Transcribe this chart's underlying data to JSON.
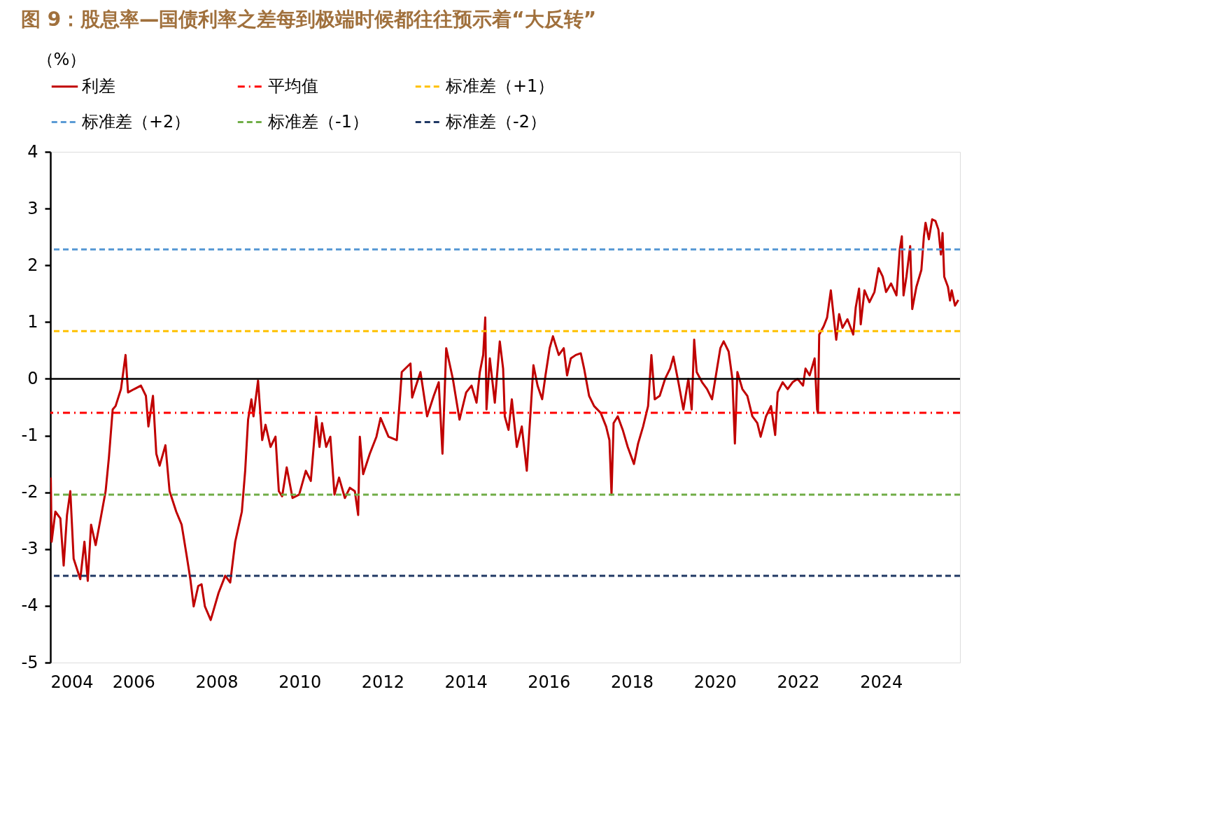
{
  "chart_data": {
    "type": "line",
    "title": "图 9：股息率—国债利率之差每到极端时候都往往预示着“大反转”",
    "ylabel": "（%）",
    "xlim": [
      2004,
      2025.9
    ],
    "xticks": [
      2004,
      2006,
      2008,
      2010,
      2012,
      2014,
      2016,
      2018,
      2020,
      2022,
      2024
    ],
    "ylim": [
      -5,
      4
    ],
    "yticks": [
      -5,
      -4,
      -3,
      -2,
      -1,
      0,
      1,
      2,
      3,
      4
    ],
    "grid": false,
    "legend": "top",
    "series": [
      {
        "name": "利差",
        "color": "#c00000",
        "line_style": "solid",
        "x": [
          2004.01,
          2004.03,
          2004.12,
          2004.24,
          2004.32,
          2004.4,
          2004.48,
          2004.56,
          2004.72,
          2004.82,
          2004.9,
          2004.98,
          2005.09,
          2005.21,
          2005.33,
          2005.41,
          2005.5,
          2005.57,
          2005.7,
          2005.81,
          2005.87,
          2006.02,
          2006.18,
          2006.3,
          2006.36,
          2006.47,
          2006.55,
          2006.63,
          2006.77,
          2006.87,
          2007.03,
          2007.16,
          2007.28,
          2007.37,
          2007.45,
          2007.56,
          2007.64,
          2007.72,
          2007.86,
          2008.05,
          2008.21,
          2008.33,
          2008.45,
          2008.61,
          2008.69,
          2008.76,
          2008.84,
          2008.89,
          2009.0,
          2009.1,
          2009.18,
          2009.3,
          2009.42,
          2009.5,
          2009.58,
          2009.69,
          2009.83,
          2009.99,
          2010.15,
          2010.27,
          2010.4,
          2010.48,
          2010.54,
          2010.64,
          2010.74,
          2010.84,
          2010.95,
          2011.09,
          2011.21,
          2011.33,
          2011.41,
          2011.45,
          2011.53,
          2011.69,
          2011.85,
          2011.95,
          2012.14,
          2012.34,
          2012.42,
          2012.46,
          2012.67,
          2012.71,
          2012.91,
          2013.07,
          2013.23,
          2013.35,
          2013.44,
          2013.53,
          2013.69,
          2013.85,
          2014.01,
          2014.14,
          2014.26,
          2014.34,
          2014.42,
          2014.47,
          2014.5,
          2014.58,
          2014.7,
          2014.82,
          2014.9,
          2014.94,
          2015.03,
          2015.11,
          2015.23,
          2015.35,
          2015.47,
          2015.57,
          2015.63,
          2015.73,
          2015.84,
          2015.92,
          2016.02,
          2016.1,
          2016.24,
          2016.36,
          2016.44,
          2016.53,
          2016.65,
          2016.77,
          2016.85,
          2016.97,
          2017.09,
          2017.25,
          2017.38,
          2017.46,
          2017.51,
          2017.56,
          2017.66,
          2017.78,
          2017.9,
          2018.05,
          2018.15,
          2018.27,
          2018.39,
          2018.47,
          2018.55,
          2018.67,
          2018.8,
          2018.92,
          2019.0,
          2019.12,
          2019.24,
          2019.36,
          2019.44,
          2019.5,
          2019.56,
          2019.69,
          2019.81,
          2019.93,
          2020.05,
          2020.13,
          2020.21,
          2020.33,
          2020.42,
          2020.48,
          2020.54,
          2020.66,
          2020.78,
          2020.9,
          2021.02,
          2021.1,
          2021.23,
          2021.35,
          2021.45,
          2021.51,
          2021.63,
          2021.75,
          2021.87,
          2021.99,
          2022.12,
          2022.18,
          2022.28,
          2022.4,
          2022.46,
          2022.48,
          2022.51,
          2022.62,
          2022.7,
          2022.79,
          2022.87,
          2022.92,
          2022.99,
          2023.07,
          2023.19,
          2023.33,
          2023.39,
          2023.47,
          2023.51,
          2023.6,
          2023.72,
          2023.84,
          2023.94,
          2024.04,
          2024.12,
          2024.24,
          2024.37,
          2024.45,
          2024.5,
          2024.54,
          2024.61,
          2024.7,
          2024.75,
          2024.85,
          2024.97,
          2025.03,
          2025.07,
          2025.15,
          2025.23,
          2025.31,
          2025.38,
          2025.44,
          2025.48,
          2025.52,
          2025.61,
          2025.66,
          2025.7,
          2025.78,
          2025.86
        ],
        "values": [
          -1.74,
          -2.87,
          -2.34,
          -2.46,
          -3.29,
          -2.4,
          -1.98,
          -3.17,
          -3.53,
          -2.87,
          -3.56,
          -2.57,
          -2.93,
          -2.46,
          -1.98,
          -1.38,
          -0.54,
          -0.48,
          -0.18,
          0.42,
          -0.24,
          -0.18,
          -0.12,
          -0.3,
          -0.84,
          -0.3,
          -1.32,
          -1.53,
          -1.17,
          -1.98,
          -2.34,
          -2.57,
          -3.11,
          -3.53,
          -4.01,
          -3.65,
          -3.62,
          -4.01,
          -4.25,
          -3.77,
          -3.47,
          -3.59,
          -2.87,
          -2.34,
          -1.62,
          -0.72,
          -0.36,
          -0.66,
          -0.03,
          -1.08,
          -0.81,
          -1.2,
          -1.02,
          -1.98,
          -2.07,
          -1.56,
          -2.1,
          -2.04,
          -1.62,
          -1.8,
          -0.66,
          -1.2,
          -0.78,
          -1.2,
          -1.02,
          -2.04,
          -1.74,
          -2.1,
          -1.92,
          -1.98,
          -2.4,
          -1.02,
          -1.68,
          -1.32,
          -1.02,
          -0.69,
          -1.02,
          -1.08,
          -0.3,
          0.12,
          0.27,
          -0.33,
          0.12,
          -0.66,
          -0.3,
          -0.06,
          -1.32,
          0.54,
          0.0,
          -0.72,
          -0.24,
          -0.12,
          -0.42,
          0.12,
          0.42,
          1.08,
          -0.54,
          0.36,
          -0.42,
          0.66,
          0.18,
          -0.66,
          -0.9,
          -0.36,
          -1.2,
          -0.84,
          -1.62,
          -0.48,
          0.24,
          -0.12,
          -0.36,
          0.06,
          0.54,
          0.75,
          0.42,
          0.54,
          0.06,
          0.36,
          0.42,
          0.45,
          0.18,
          -0.3,
          -0.48,
          -0.6,
          -0.84,
          -1.08,
          -2.04,
          -0.78,
          -0.66,
          -0.9,
          -1.2,
          -1.5,
          -1.14,
          -0.84,
          -0.48,
          0.42,
          -0.36,
          -0.3,
          0.0,
          0.18,
          0.39,
          -0.06,
          -0.54,
          0.0,
          -0.54,
          0.69,
          0.12,
          -0.06,
          -0.18,
          -0.36,
          0.18,
          0.54,
          0.66,
          0.48,
          0.0,
          -1.14,
          0.12,
          -0.18,
          -0.3,
          -0.66,
          -0.78,
          -1.02,
          -0.66,
          -0.48,
          -0.99,
          -0.24,
          -0.06,
          -0.18,
          -0.06,
          0.0,
          -0.12,
          0.18,
          0.06,
          0.36,
          -0.54,
          -0.6,
          0.78,
          0.93,
          1.08,
          1.56,
          1.02,
          0.69,
          1.14,
          0.9,
          1.05,
          0.78,
          1.26,
          1.59,
          0.96,
          1.56,
          1.35,
          1.53,
          1.95,
          1.8,
          1.53,
          1.68,
          1.47,
          2.28,
          2.51,
          1.47,
          1.8,
          2.34,
          1.23,
          1.62,
          1.92,
          2.51,
          2.75,
          2.46,
          2.81,
          2.78,
          2.63,
          2.19,
          2.57,
          1.8,
          1.62,
          1.38,
          1.56,
          1.29,
          1.39
        ]
      }
    ],
    "ref_lines": [
      {
        "axis": "y",
        "value": -0.6,
        "label": "平均值",
        "color": "#ff0000",
        "line_style": "dashdot"
      },
      {
        "axis": "y",
        "value": 0.84,
        "label": "标准差（+1）",
        "color": "#ffc000",
        "line_style": "dashed"
      },
      {
        "axis": "y",
        "value": 2.28,
        "label": "标准差（+2）",
        "color": "#5b9bd5",
        "line_style": "dashed"
      },
      {
        "axis": "y",
        "value": -2.04,
        "label": "标准差（-1）",
        "color": "#70ad47",
        "line_style": "dashed"
      },
      {
        "axis": "y",
        "value": -3.47,
        "label": "标准差（-2）",
        "color": "#203864",
        "line_style": "dashed"
      }
    ]
  }
}
